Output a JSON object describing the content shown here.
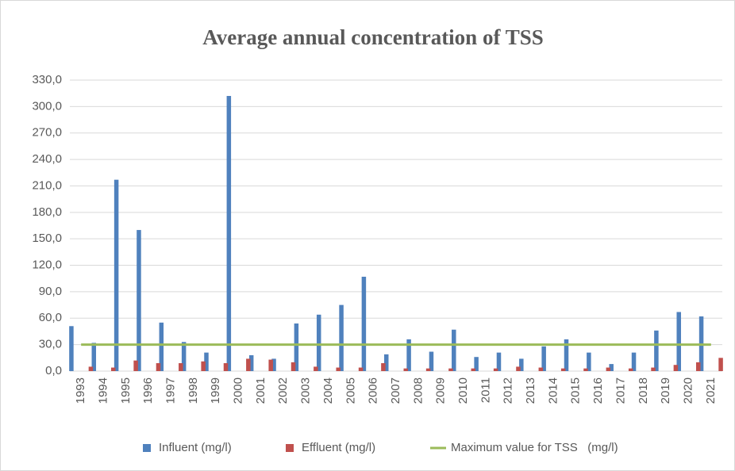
{
  "chart_data": {
    "type": "bar",
    "title": "Average annual concentration of TSS",
    "categories": [
      "1993",
      "1994",
      "1995",
      "1996",
      "1997",
      "1998",
      "1999",
      "2000",
      "2001",
      "2002",
      "2003",
      "2004",
      "2005",
      "2006",
      "2007",
      "2008",
      "2009",
      "2010",
      "2011",
      "2012",
      "2013",
      "2014",
      "2015",
      "2016",
      "2017",
      "2018",
      "2019",
      "2020",
      "2021"
    ],
    "series": [
      {
        "name": "Influent (mg/l)",
        "color": "#4f81bd",
        "values": [
          51,
          32,
          217,
          160,
          55,
          33,
          21,
          312,
          18,
          14,
          54,
          64,
          75,
          107,
          19,
          36,
          22,
          47,
          16,
          21,
          14,
          28,
          36,
          21,
          8,
          21,
          46,
          67,
          62
        ]
      },
      {
        "name": "Effluent (mg/l)",
        "color": "#c0504d",
        "values": [
          5,
          4,
          12,
          9,
          9,
          11,
          9,
          14,
          13,
          10,
          5,
          4,
          4,
          9,
          3,
          3,
          3,
          3,
          3,
          5,
          4,
          3,
          3,
          4,
          3,
          4,
          7,
          10,
          15
        ]
      },
      {
        "name": "Maximum value for TSS   (mg/l)",
        "color": "#9bbb59",
        "type": "line",
        "values": [
          30,
          30,
          30,
          30,
          30,
          30,
          30,
          30,
          30,
          30,
          30,
          30,
          30,
          30,
          30,
          30,
          30,
          30,
          30,
          30,
          30,
          30,
          30,
          30,
          30,
          30,
          30,
          30,
          30
        ]
      }
    ],
    "ylim": [
      0,
      330
    ],
    "yticks": [
      {
        "value": 0,
        "label": "0,0"
      },
      {
        "value": 30,
        "label": "30,0"
      },
      {
        "value": 60,
        "label": "60,0"
      },
      {
        "value": 90,
        "label": "90,0"
      },
      {
        "value": 120,
        "label": "120,0"
      },
      {
        "value": 150,
        "label": "150,0"
      },
      {
        "value": 180,
        "label": "180,0"
      },
      {
        "value": 210,
        "label": "210,0"
      },
      {
        "value": 240,
        "label": "240,0"
      },
      {
        "value": 270,
        "label": "270,0"
      },
      {
        "value": 300,
        "label": "300,0"
      },
      {
        "value": 330,
        "label": "330,0"
      }
    ],
    "grid": true,
    "legend": "bottom"
  }
}
